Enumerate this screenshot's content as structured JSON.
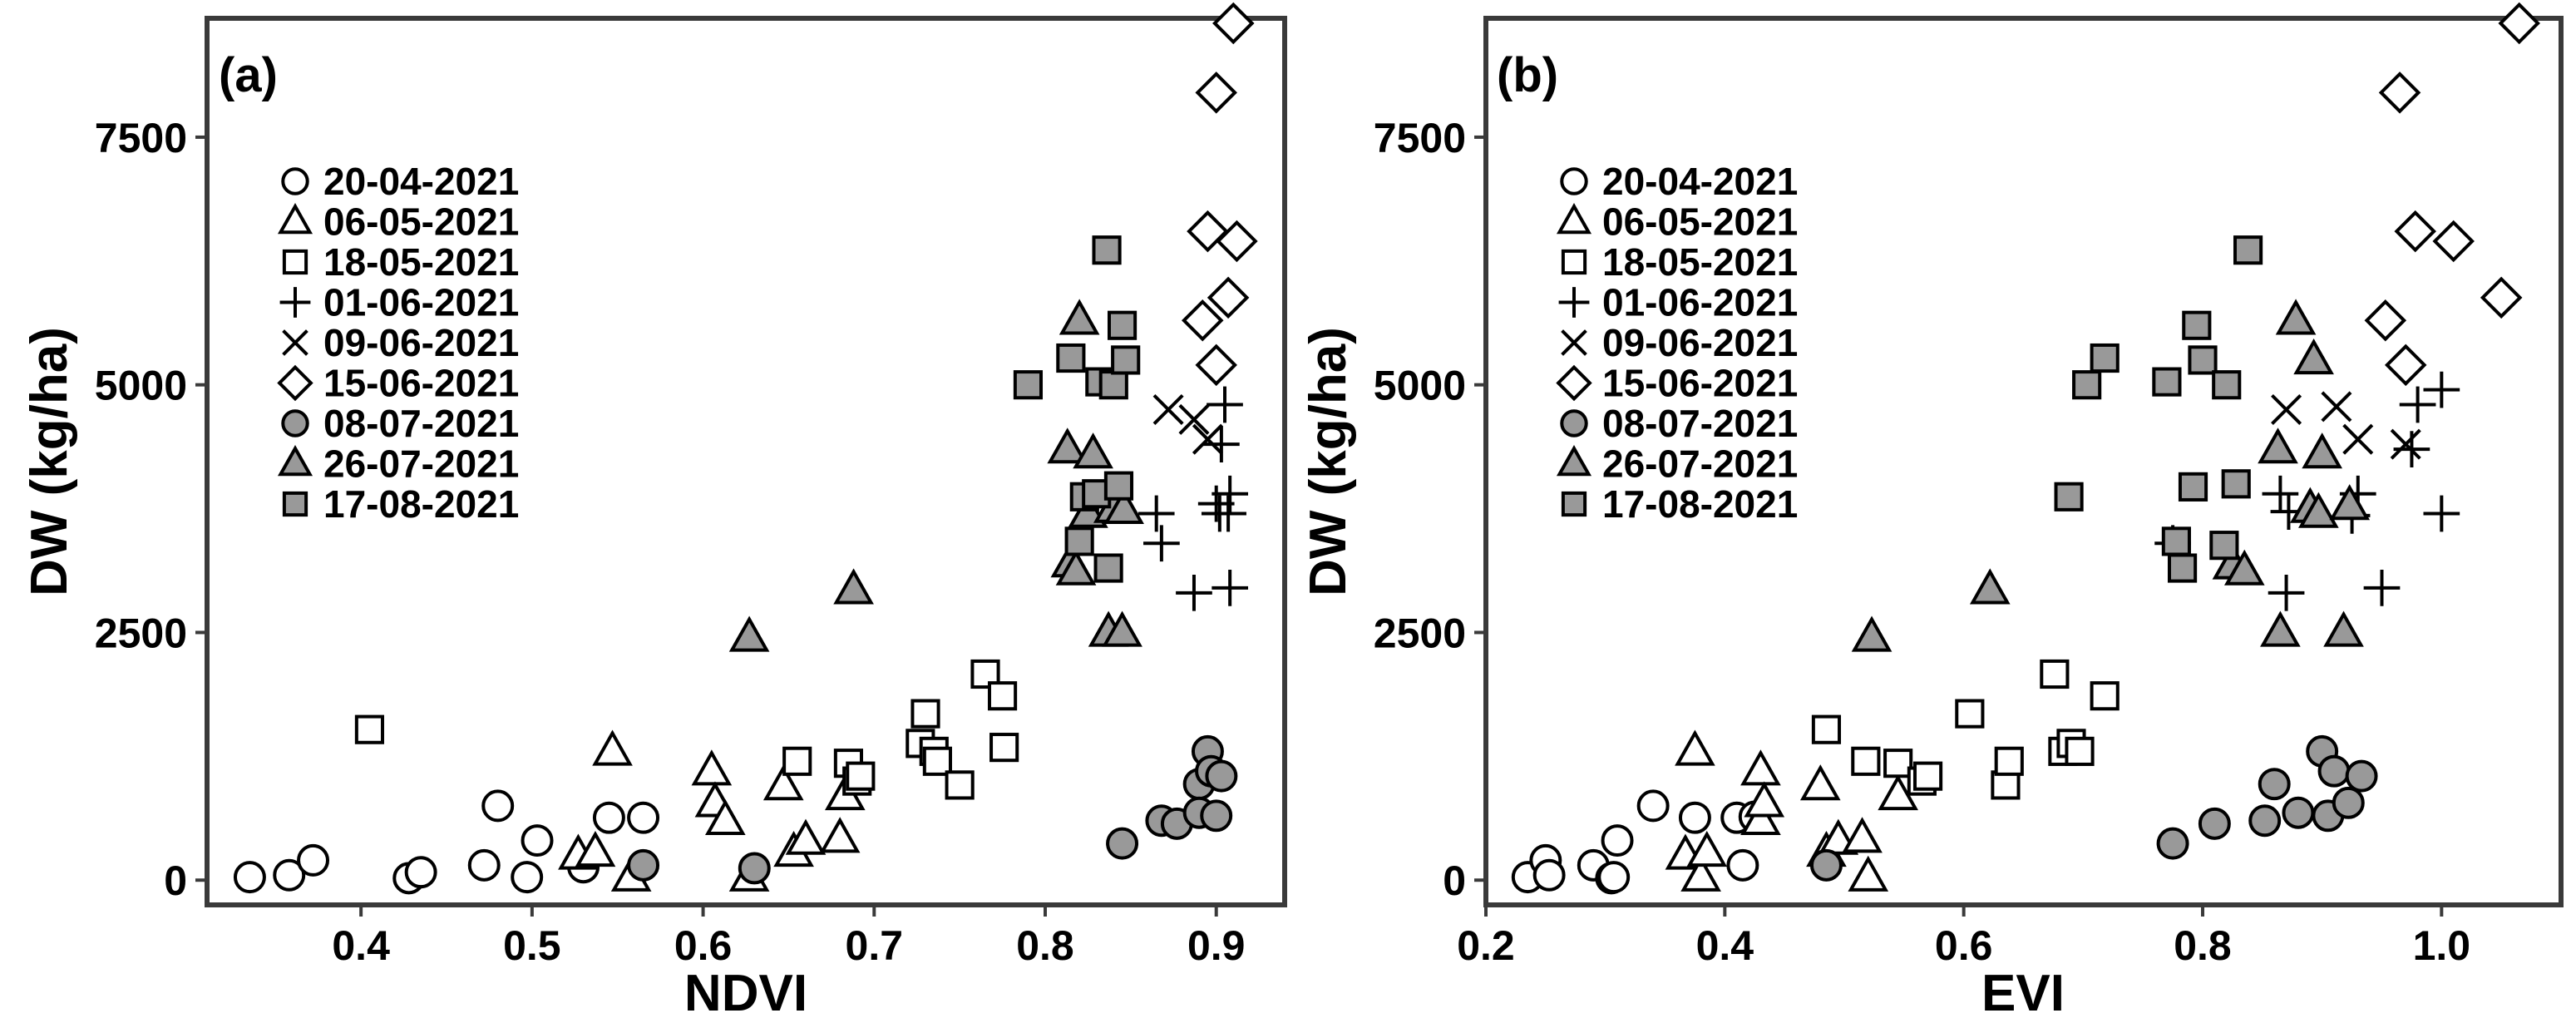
{
  "chart_data": [
    {
      "type": "scatter",
      "panel_label": "(a)",
      "title": "",
      "xlabel": "NDVI",
      "ylabel": "DW (kg/ha)",
      "xlim": [
        0.31,
        0.94
      ],
      "ylim": [
        -250,
        8700
      ],
      "xticks": [
        0.4,
        0.5,
        0.6,
        0.7,
        0.8,
        0.9
      ],
      "xtick_labels": [
        "0.4",
        "0.5",
        "0.6",
        "0.7",
        "0.8",
        "0.9"
      ],
      "yticks": [
        0,
        2500,
        5000,
        7500
      ],
      "ytick_labels": [
        "0",
        "2500",
        "5000",
        "7500"
      ],
      "legend_position": "top-left",
      "series": [
        {
          "name": "20-04-2021",
          "marker": "circle",
          "fill": "#ffffff",
          "points": [
            [
              0.335,
              30
            ],
            [
              0.358,
              50
            ],
            [
              0.372,
              200
            ],
            [
              0.428,
              20
            ],
            [
              0.435,
              80
            ],
            [
              0.472,
              150
            ],
            [
              0.48,
              750
            ],
            [
              0.497,
              30
            ],
            [
              0.503,
              400
            ],
            [
              0.53,
              130
            ],
            [
              0.545,
              630
            ],
            [
              0.565,
              630
            ]
          ]
        },
        {
          "name": "06-05-2021",
          "marker": "triangle",
          "fill": "#ffffff",
          "points": [
            [
              0.527,
              250
            ],
            [
              0.537,
              280
            ],
            [
              0.547,
              1300
            ],
            [
              0.558,
              30
            ],
            [
              0.605,
              1100
            ],
            [
              0.607,
              780
            ],
            [
              0.613,
              600
            ],
            [
              0.627,
              30
            ],
            [
              0.647,
              950
            ],
            [
              0.653,
              280
            ],
            [
              0.66,
              400
            ],
            [
              0.68,
              420
            ],
            [
              0.683,
              850
            ]
          ]
        },
        {
          "name": "18-05-2021",
          "marker": "square",
          "fill": "#ffffff",
          "points": [
            [
              0.405,
              1520
            ],
            [
              0.655,
              1200
            ],
            [
              0.685,
              1180
            ],
            [
              0.69,
              1000
            ],
            [
              0.692,
              1050
            ],
            [
              0.727,
              1380
            ],
            [
              0.73,
              1680
            ],
            [
              0.735,
              1300
            ],
            [
              0.737,
              1200
            ],
            [
              0.75,
              960
            ],
            [
              0.765,
              2080
            ],
            [
              0.775,
              1860
            ],
            [
              0.776,
              1340
            ]
          ]
        },
        {
          "name": "01-06-2021",
          "marker": "plus",
          "fill": "none",
          "points": [
            [
              0.865,
              3700
            ],
            [
              0.868,
              3400
            ],
            [
              0.887,
              2900
            ],
            [
              0.9,
              3800
            ],
            [
              0.902,
              3700
            ],
            [
              0.903,
              4400
            ],
            [
              0.905,
              4800
            ],
            [
              0.907,
              3700
            ],
            [
              0.908,
              3900
            ],
            [
              0.908,
              2950
            ]
          ]
        },
        {
          "name": "09-06-2021",
          "marker": "cross",
          "fill": "none",
          "points": [
            [
              0.872,
              4750
            ],
            [
              0.887,
              4650
            ],
            [
              0.895,
              4450
            ]
          ]
        },
        {
          "name": "15-06-2021",
          "marker": "diamond",
          "fill": "#ffffff",
          "points": [
            [
              0.892,
              5650
            ],
            [
              0.895,
              6550
            ],
            [
              0.9,
              7950
            ],
            [
              0.9,
              5200
            ],
            [
              0.907,
              5880
            ],
            [
              0.91,
              8650
            ],
            [
              0.912,
              6450
            ]
          ]
        },
        {
          "name": "08-07-2021",
          "marker": "circle",
          "fill": "#999999",
          "points": [
            [
              0.565,
              150
            ],
            [
              0.63,
              120
            ],
            [
              0.845,
              370
            ],
            [
              0.868,
              600
            ],
            [
              0.877,
              570
            ],
            [
              0.89,
              970
            ],
            [
              0.89,
              680
            ],
            [
              0.895,
              1300
            ],
            [
              0.897,
              1100
            ],
            [
              0.9,
              650
            ],
            [
              0.903,
              1050
            ]
          ]
        },
        {
          "name": "26-07-2021",
          "marker": "triangle",
          "fill": "#999999",
          "points": [
            [
              0.627,
              2450
            ],
            [
              0.688,
              2930
            ],
            [
              0.813,
              4350
            ],
            [
              0.815,
              3200
            ],
            [
              0.818,
              3120
            ],
            [
              0.82,
              5650
            ],
            [
              0.825,
              3700
            ],
            [
              0.828,
              4300
            ],
            [
              0.837,
              2500
            ],
            [
              0.84,
              3750
            ],
            [
              0.845,
              2500
            ],
            [
              0.846,
              3740
            ]
          ]
        },
        {
          "name": "17-08-2021",
          "marker": "square",
          "fill": "#999999",
          "points": [
            [
              0.79,
              5000
            ],
            [
              0.815,
              5270
            ],
            [
              0.82,
              3420
            ],
            [
              0.823,
              3870
            ],
            [
              0.83,
              3900
            ],
            [
              0.832,
              5030
            ],
            [
              0.836,
              6360
            ],
            [
              0.837,
              3150
            ],
            [
              0.84,
              5000
            ],
            [
              0.843,
              3980
            ],
            [
              0.845,
              5600
            ],
            [
              0.847,
              5250
            ]
          ]
        }
      ]
    },
    {
      "type": "scatter",
      "panel_label": "(b)",
      "title": "",
      "xlabel": "EVI",
      "ylabel": "DW (kg/ha)",
      "xlim": [
        0.2,
        1.1
      ],
      "ylim": [
        -250,
        8700
      ],
      "xticks": [
        0.2,
        0.4,
        0.6,
        0.8,
        1.0
      ],
      "xtick_labels": [
        "0.2",
        "0.4",
        "0.6",
        "0.8",
        "1.0"
      ],
      "yticks": [
        0,
        2500,
        5000,
        7500
      ],
      "ytick_labels": [
        "0",
        "2500",
        "5000",
        "7500"
      ],
      "legend_position": "top-left",
      "series": [
        {
          "name": "20-04-2021",
          "marker": "circle",
          "fill": "#ffffff",
          "points": [
            [
              0.235,
              30
            ],
            [
              0.25,
              200
            ],
            [
              0.253,
              50
            ],
            [
              0.29,
              150
            ],
            [
              0.305,
              20
            ],
            [
              0.307,
              30
            ],
            [
              0.31,
              400
            ],
            [
              0.34,
              750
            ],
            [
              0.375,
              630
            ],
            [
              0.41,
              630
            ],
            [
              0.415,
              150
            ],
            [
              0.425,
              640
            ]
          ]
        },
        {
          "name": "06-05-2021",
          "marker": "triangle",
          "fill": "#ffffff",
          "points": [
            [
              0.367,
              250
            ],
            [
              0.375,
              1300
            ],
            [
              0.38,
              30
            ],
            [
              0.385,
              280
            ],
            [
              0.43,
              1100
            ],
            [
              0.43,
              600
            ],
            [
              0.433,
              780
            ],
            [
              0.48,
              950
            ],
            [
              0.485,
              280
            ],
            [
              0.495,
              400
            ],
            [
              0.515,
              420
            ],
            [
              0.52,
              30
            ],
            [
              0.545,
              850
            ]
          ]
        },
        {
          "name": "18-05-2021",
          "marker": "square",
          "fill": "#ffffff",
          "points": [
            [
              0.485,
              1520
            ],
            [
              0.518,
              1200
            ],
            [
              0.545,
              1180
            ],
            [
              0.565,
              1000
            ],
            [
              0.57,
              1050
            ],
            [
              0.605,
              1680
            ],
            [
              0.635,
              960
            ],
            [
              0.638,
              1200
            ],
            [
              0.676,
              2080
            ],
            [
              0.683,
              1300
            ],
            [
              0.69,
              1380
            ],
            [
              0.697,
              1300
            ],
            [
              0.718,
              1860
            ]
          ]
        },
        {
          "name": "01-06-2021",
          "marker": "plus",
          "fill": "none",
          "points": [
            [
              0.775,
              3400
            ],
            [
              0.865,
              3900
            ],
            [
              0.87,
              2900
            ],
            [
              0.872,
              3720
            ],
            [
              0.925,
              3680
            ],
            [
              0.93,
              3900
            ],
            [
              0.95,
              2950
            ],
            [
              0.975,
              4350
            ],
            [
              0.98,
              4800
            ],
            [
              1.0,
              4950
            ],
            [
              1.0,
              3700
            ]
          ]
        },
        {
          "name": "09-06-2021",
          "marker": "cross",
          "fill": "none",
          "points": [
            [
              0.87,
              4750
            ],
            [
              0.912,
              4780
            ],
            [
              0.93,
              4450
            ],
            [
              0.97,
              4400
            ]
          ]
        },
        {
          "name": "15-06-2021",
          "marker": "diamond",
          "fill": "#ffffff",
          "points": [
            [
              0.953,
              5650
            ],
            [
              0.965,
              7950
            ],
            [
              0.97,
              5200
            ],
            [
              0.978,
              6550
            ],
            [
              1.01,
              6450
            ],
            [
              1.05,
              5880
            ],
            [
              1.065,
              8650
            ]
          ]
        },
        {
          "name": "08-07-2021",
          "marker": "circle",
          "fill": "#999999",
          "points": [
            [
              0.485,
              150
            ],
            [
              0.775,
              370
            ],
            [
              0.81,
              570
            ],
            [
              0.852,
              600
            ],
            [
              0.86,
              970
            ],
            [
              0.88,
              680
            ],
            [
              0.9,
              1300
            ],
            [
              0.905,
              650
            ],
            [
              0.91,
              1100
            ],
            [
              0.922,
              780
            ],
            [
              0.933,
              1050
            ]
          ]
        },
        {
          "name": "26-07-2021",
          "marker": "triangle",
          "fill": "#999999",
          "points": [
            [
              0.523,
              2450
            ],
            [
              0.622,
              2930
            ],
            [
              0.825,
              3180
            ],
            [
              0.835,
              3120
            ],
            [
              0.863,
              4350
            ],
            [
              0.865,
              2500
            ],
            [
              0.878,
              5650
            ],
            [
              0.89,
              3750
            ],
            [
              0.893,
              5250
            ],
            [
              0.897,
              3700
            ],
            [
              0.9,
              4300
            ],
            [
              0.918,
              2500
            ],
            [
              0.923,
              3780
            ]
          ]
        },
        {
          "name": "17-08-2021",
          "marker": "square",
          "fill": "#999999",
          "points": [
            [
              0.688,
              3870
            ],
            [
              0.703,
              5000
            ],
            [
              0.718,
              5270
            ],
            [
              0.77,
              5030
            ],
            [
              0.778,
              3420
            ],
            [
              0.783,
              3150
            ],
            [
              0.792,
              3970
            ],
            [
              0.795,
              5600
            ],
            [
              0.8,
              5250
            ],
            [
              0.818,
              3380
            ],
            [
              0.82,
              5000
            ],
            [
              0.828,
              4000
            ],
            [
              0.838,
              6360
            ]
          ]
        }
      ]
    }
  ]
}
